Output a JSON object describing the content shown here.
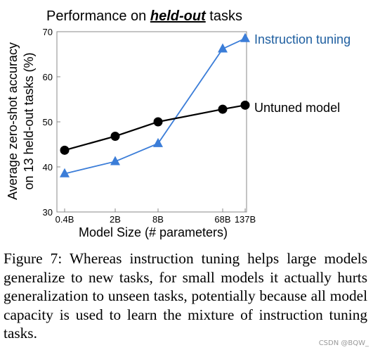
{
  "chart_data": {
    "type": "line",
    "title_prefix": "Performance on ",
    "title_emphasis": "held-out",
    "title_suffix": " tasks",
    "xlabel": "Model Size (# parameters)",
    "ylabel_line1": "Average zero-shot accuracy",
    "ylabel_line2": "on 13 held-out tasks (%)",
    "categories": [
      "0.4B",
      "2B",
      "8B",
      "68B",
      "137B"
    ],
    "yticks": [
      30,
      40,
      50,
      60,
      70
    ],
    "ylim": [
      30,
      70
    ],
    "grid": false,
    "series": [
      {
        "name": "Instruction tuning",
        "marker": "triangle",
        "color": "#3b7dd8",
        "label_color": "#1f5fa0",
        "x": [
          0,
          1,
          2,
          3,
          4
        ],
        "values": [
          38.5,
          41.2,
          45.2,
          66.2,
          68.5
        ]
      },
      {
        "name": "Untuned model",
        "marker": "circle",
        "color": "#000000",
        "label_color": "#000000",
        "x": [
          0,
          1,
          2,
          3,
          4
        ],
        "values": [
          43.7,
          46.8,
          50.0,
          52.8,
          53.7
        ]
      }
    ]
  },
  "caption": "Figure 7:   Whereas instruction tuning helps large models generalize to new tasks, for small models it actually hurts generalization to unseen tasks, potentially because all model capacity is used to learn the mixture of instruction tuning tasks.",
  "watermark": "CSDN @BQW_"
}
